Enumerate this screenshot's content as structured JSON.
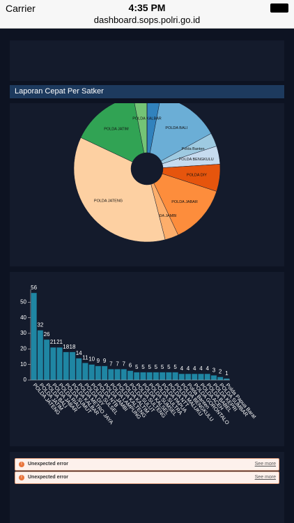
{
  "status_bar": {
    "carrier": "Carrier",
    "time": "4:35 PM",
    "url": "dashboard.sops.polri.go.id"
  },
  "errors": [
    {
      "message": "Unexpected error",
      "link": "See more"
    },
    {
      "message": "Unexpected error",
      "link": "See more"
    }
  ],
  "chart_data": [
    {
      "type": "pie",
      "title": "Laporan Cepat Per Satker",
      "categories": [
        null,
        "POLDA BALI",
        "Polda Banten",
        "POLDA BENGKULU",
        "POLDA DIY",
        "POLDA JABAR",
        "POLDA JAMBI",
        "POLDA JATENG",
        "POLDA JATIM",
        null,
        "POLDA KALBAR"
      ],
      "values": [
        3,
        14,
        3,
        4,
        6,
        13,
        3,
        36,
        15,
        3,
        0
      ],
      "colors": [
        "#3182bd",
        "#6baed6",
        "#9ecae1",
        "#c6dbef",
        "#e6550d",
        "#fd8d3c",
        "#fdae6b",
        "#fdd0a2",
        "#31a354",
        "#74c476",
        "#a1d99b"
      ]
    },
    {
      "type": "bar",
      "categories": [
        "POLDA JATENG",
        "POLDA JATIM",
        "POLDA BALI",
        "POLDA JABAR",
        "POLDA RIAU",
        "POLDA SUMUT",
        "POLDA KALBAR",
        "POLDA METRO JAYA",
        "POLDA DIY",
        "POLDA SULSEL",
        "POLDA NTB",
        "POLDA JAMBI",
        "POLDA LAMPUNG",
        "POLDA KALTENG",
        "POLDA KALTIM",
        "POLDA SULUT",
        "POLDA SULTENG",
        "POLDA KALSEL",
        "POLDA SUMSEL",
        "POLDA SULTRA",
        "POLDA PAPUA",
        "POLDA NTT",
        "POLDA MALUKU",
        "POLDA BENGKULU",
        "Polda Banten",
        "POLDA GORONTALO",
        "POLDA ACEH",
        "POLDA BABEL",
        "POLDA KEPRI",
        "POLDA SUMBAR",
        "Polda Papua Barat"
      ],
      "values": [
        56,
        32,
        26,
        21,
        21,
        18,
        18,
        14,
        11,
        10,
        9,
        9,
        7,
        7,
        7,
        6,
        5,
        5,
        5,
        5,
        5,
        5,
        5,
        4,
        4,
        4,
        4,
        4,
        3,
        2,
        1
      ],
      "color": "#1f86a3",
      "ylim": [
        0,
        56
      ],
      "yticks": [
        0,
        10,
        20,
        30,
        40,
        50
      ]
    }
  ]
}
